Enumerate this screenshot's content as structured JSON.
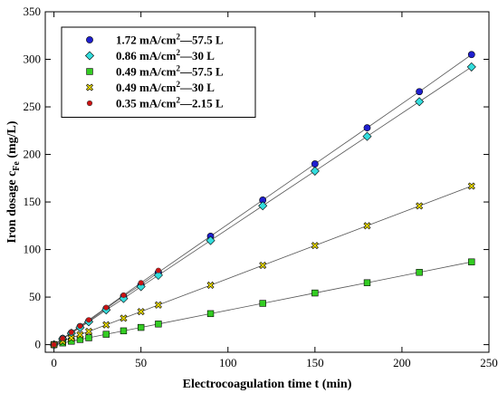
{
  "chart_data": {
    "type": "line",
    "xlabel": "Electrocoagulation time t (min)",
    "ylabel_main": "Iron dosage c",
    "ylabel_sub": "Fe",
    "ylabel_unit": " (mg/L)",
    "xlim": [
      -5,
      250
    ],
    "ylim": [
      -8,
      350
    ],
    "xticks": [
      0,
      50,
      100,
      150,
      200,
      250
    ],
    "yticks": [
      0,
      50,
      100,
      150,
      200,
      250,
      300,
      350
    ],
    "grid": false,
    "legend_position": "top-left",
    "series": [
      {
        "name": "1.72 mA/cm2—57.5 L",
        "legend_pre": "1.72 mA/cm",
        "legend_sup": "2",
        "legend_post": "—57.5 L",
        "marker": "circle",
        "color": "#1f1fcf",
        "x": [
          0,
          5,
          10,
          15,
          20,
          30,
          40,
          50,
          60,
          90,
          120,
          150,
          180,
          210,
          240
        ],
        "y": [
          0,
          6.5,
          12.5,
          19,
          25,
          38,
          51,
          63,
          76,
          114,
          152,
          190,
          228,
          266,
          305
        ]
      },
      {
        "name": "0.86 mA/cm2—30 L",
        "legend_pre": "0.86 mA/cm",
        "legend_sup": "2",
        "legend_post": "—30 L",
        "marker": "diamond",
        "color": "#33dddd",
        "x": [
          0,
          5,
          10,
          15,
          20,
          30,
          40,
          50,
          60,
          90,
          120,
          150,
          180,
          210,
          240
        ],
        "y": [
          0,
          6,
          12,
          18,
          24,
          36.5,
          48.5,
          61,
          73,
          109.5,
          146,
          182.5,
          219,
          255.5,
          292
        ]
      },
      {
        "name": "0.49 mA/cm2—57.5 L",
        "legend_pre": "0.49 mA/cm",
        "legend_sup": "2",
        "legend_post": "—57.5 L",
        "marker": "square",
        "color": "#33cc22",
        "x": [
          0,
          5,
          10,
          15,
          20,
          30,
          40,
          50,
          60,
          90,
          120,
          150,
          180,
          210,
          240
        ],
        "y": [
          0,
          1.8,
          3.6,
          5.4,
          7.2,
          10.9,
          14.5,
          18.1,
          21.7,
          32.6,
          43.4,
          54.3,
          65.1,
          76,
          87
        ]
      },
      {
        "name": "0.49 mA/cm2—30 L",
        "legend_pre": "0.49 mA/cm",
        "legend_sup": "2",
        "legend_post": "—30 L",
        "marker": "xsquare",
        "color": "#e8d800",
        "x": [
          0,
          5,
          10,
          15,
          20,
          30,
          40,
          50,
          60,
          90,
          120,
          150,
          180,
          210,
          240
        ],
        "y": [
          0,
          3.5,
          7,
          10.4,
          13.9,
          20.8,
          27.8,
          34.7,
          41.7,
          62.5,
          83.4,
          104.2,
          125,
          145.9,
          166.7
        ]
      },
      {
        "name": "0.35 mA/cm2—2.15 L",
        "legend_pre": "0.35 mA/cm",
        "legend_sup": "2",
        "legend_post": "—2.15 L",
        "marker": "circle-small",
        "color": "#cc1111",
        "x": [
          0,
          5,
          10,
          15,
          20,
          30,
          40,
          50,
          60
        ],
        "y": [
          0,
          6.5,
          13,
          19.5,
          26,
          39,
          52,
          65,
          78
        ]
      }
    ]
  }
}
